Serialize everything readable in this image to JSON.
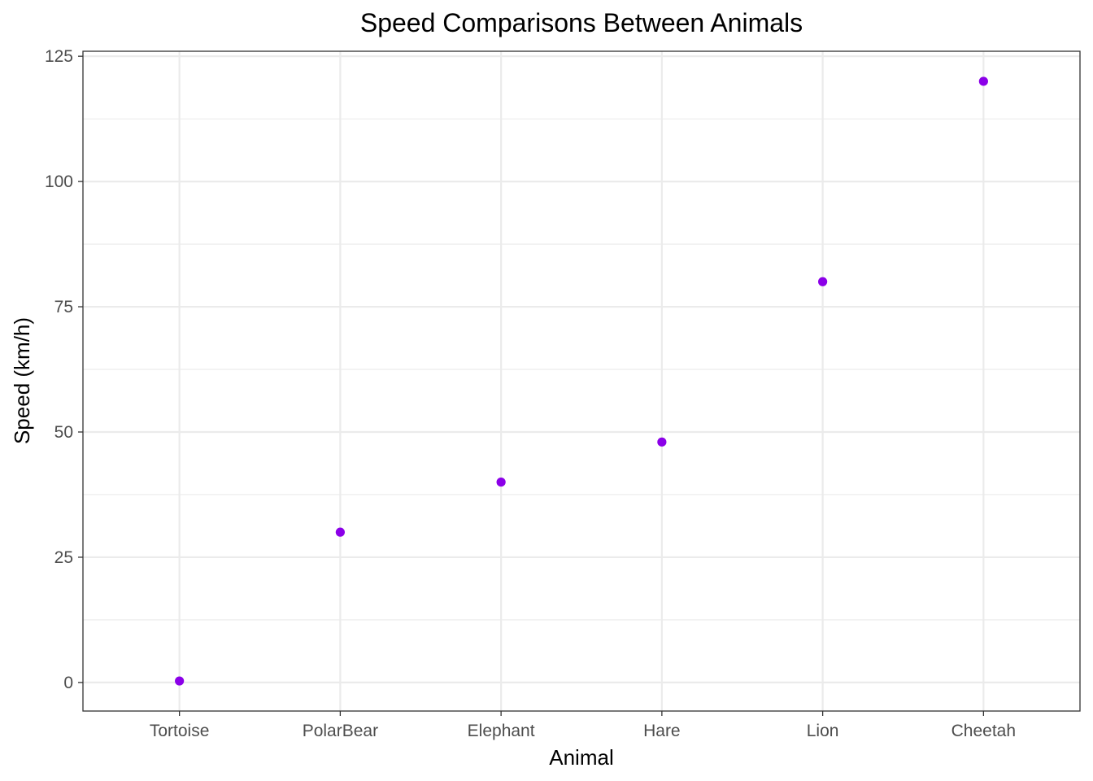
{
  "chart_data": {
    "type": "scatter",
    "title": "Speed Comparisons Between Animals",
    "xlabel": "Animal",
    "ylabel": "Speed (km/h)",
    "categories": [
      "Tortoise",
      "PolarBear",
      "Elephant",
      "Hare",
      "Lion",
      "Cheetah"
    ],
    "series": [
      {
        "values": [
          0.3,
          30,
          40,
          48,
          80,
          120
        ]
      }
    ],
    "ylim": [
      -5.7,
      126
    ],
    "yticks": [
      0,
      25,
      50,
      75,
      100,
      125
    ],
    "grid": true,
    "legend": "none",
    "point_color": "#8B00E8",
    "gridline_color": "#EBEBEB",
    "panel_border_color": "#333333"
  }
}
